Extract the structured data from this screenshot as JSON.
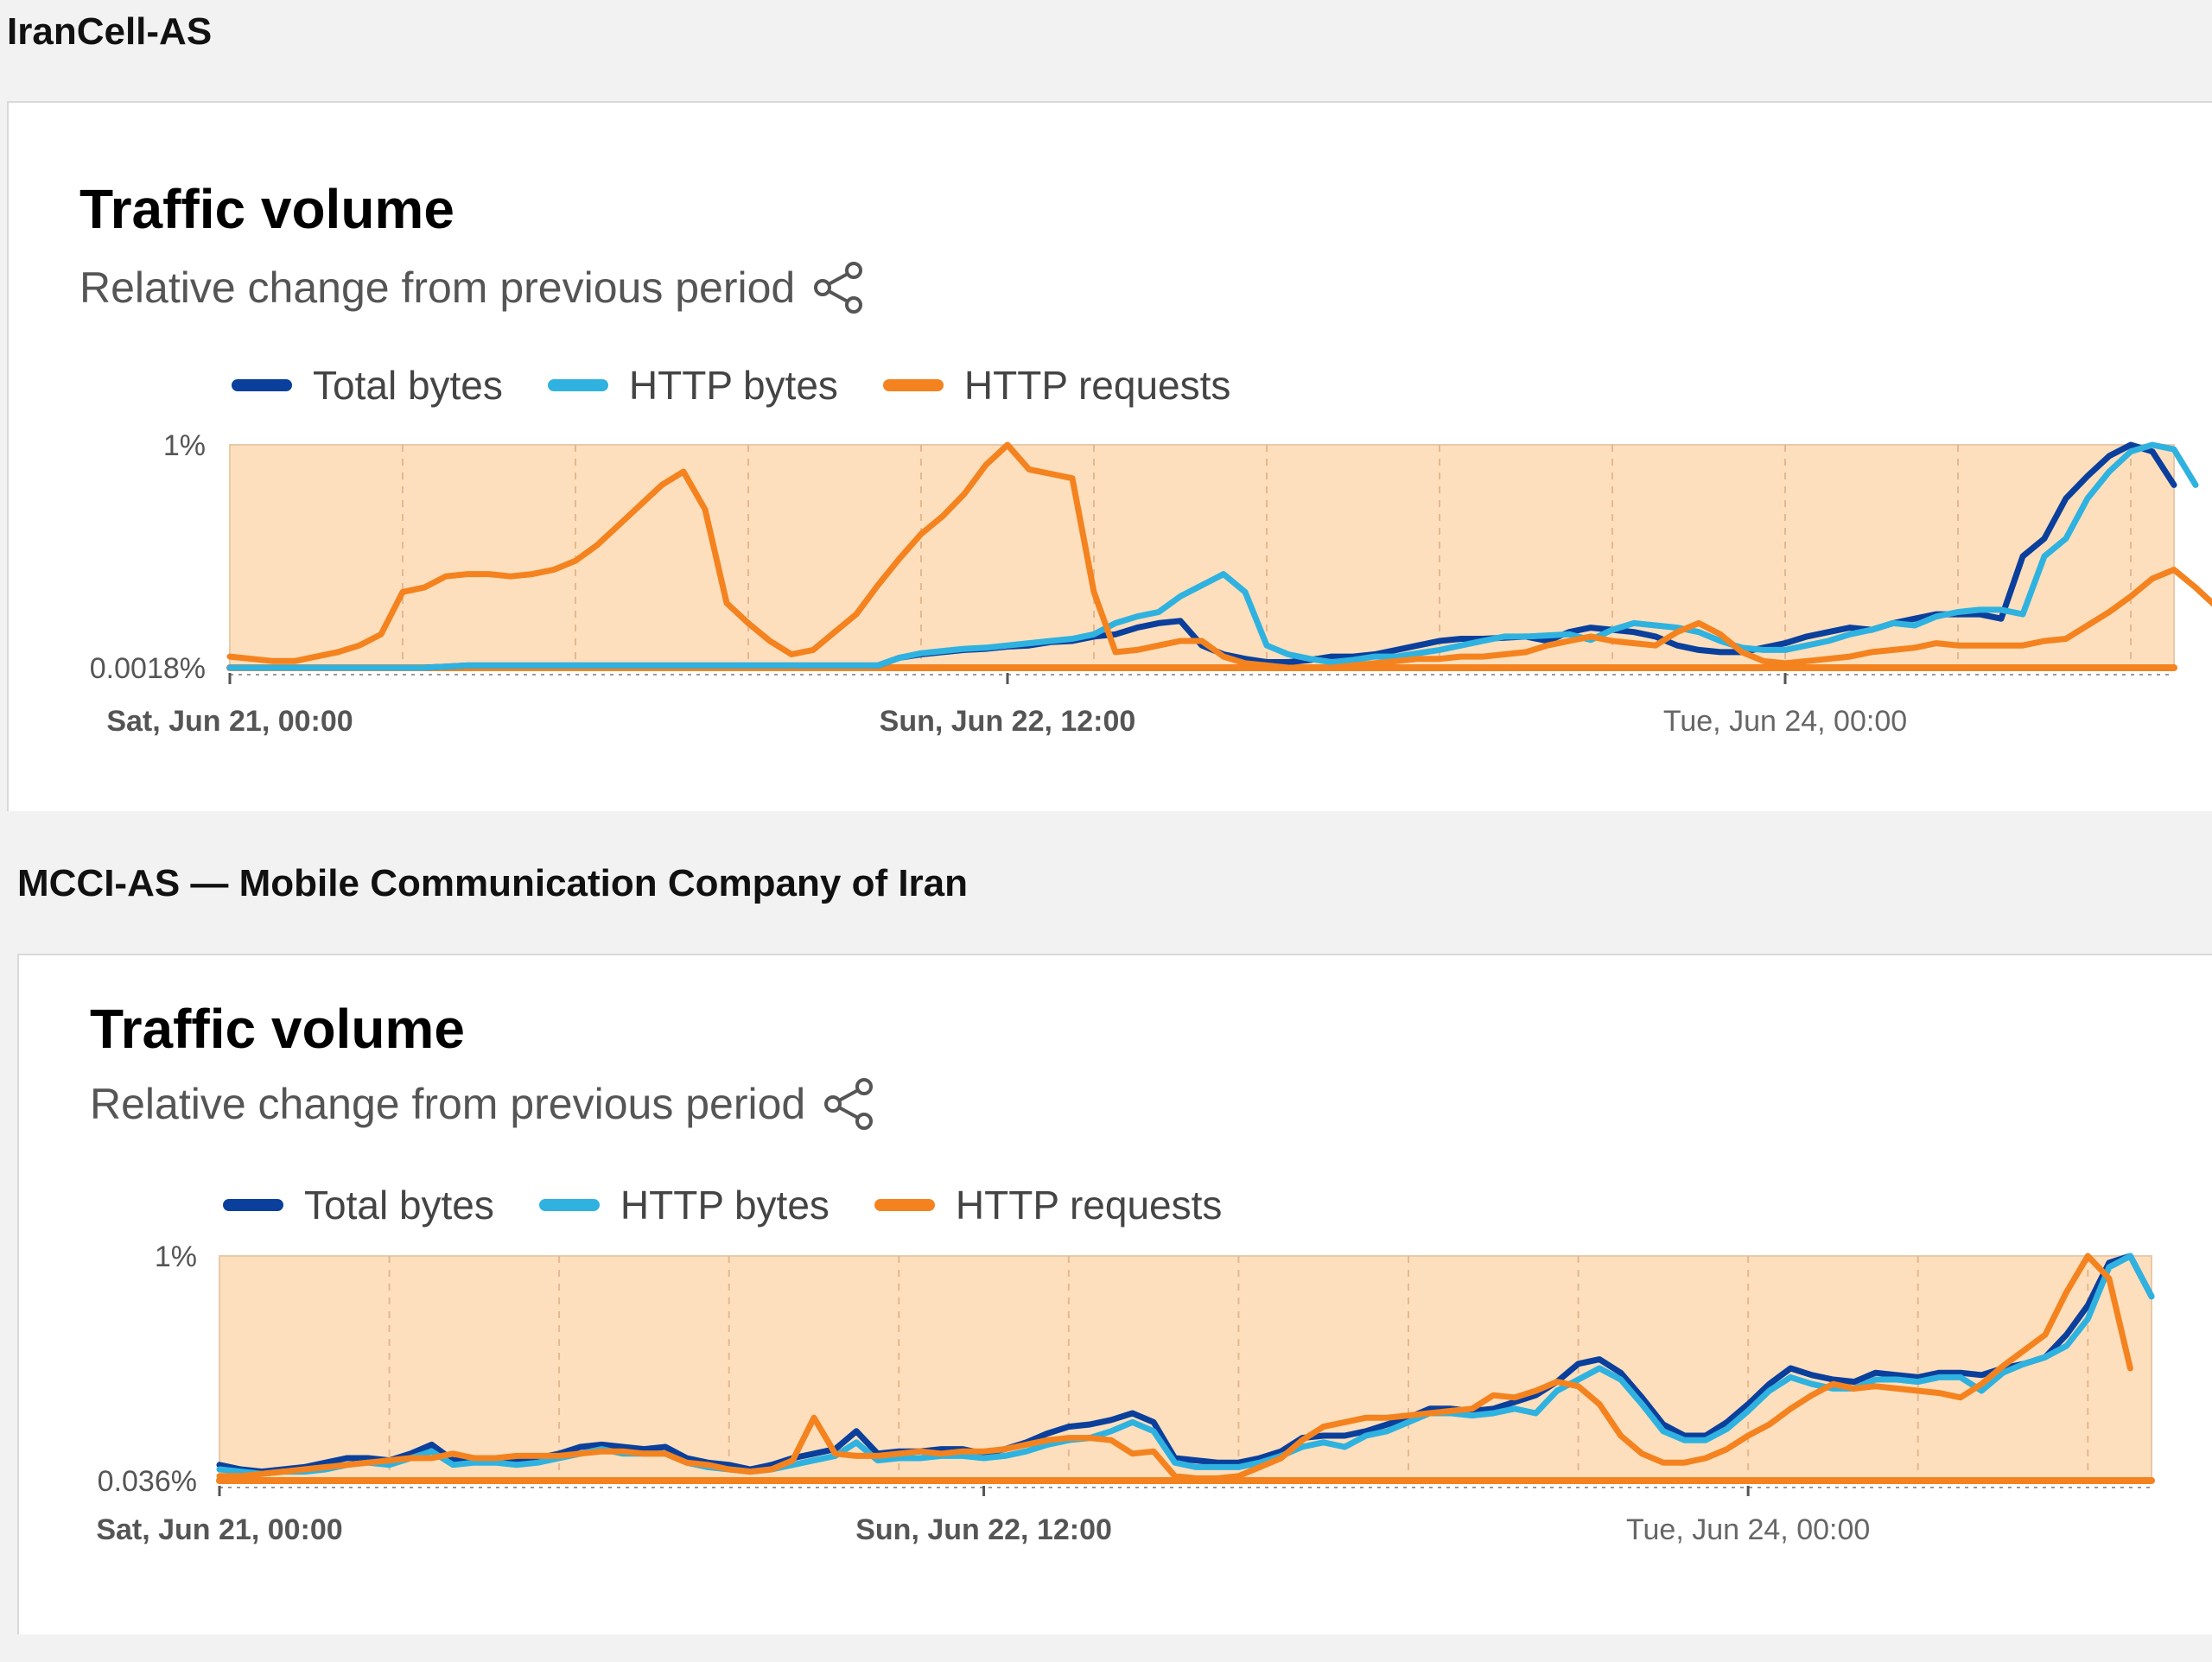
{
  "panels": [
    {
      "asn_title": "IranCell-AS",
      "title": "Traffic volume",
      "subtitle": "Relative change from previous period",
      "icons": {
        "share": "share-icon"
      },
      "legend": [
        {
          "name": "Total bytes",
          "color": "#0a3f9c"
        },
        {
          "name": "HTTP bytes",
          "color": "#2fb2e0"
        },
        {
          "name": "HTTP requests",
          "color": "#f4831f"
        }
      ],
      "chart_data": {
        "type": "line",
        "background_fill": "#fddfbd",
        "ytick_labels": [
          "1%",
          "0.0018%"
        ],
        "xtick_labels": [
          {
            "label": "Sat, Jun 21, 00:00",
            "bold": true,
            "t": 0
          },
          {
            "label": "Sun, Jun 22, 12:00",
            "bold": true,
            "t": 36
          },
          {
            "label": "Tue, Jun 24, 00:00",
            "bold": false,
            "t": 72
          }
        ],
        "x_start": "Jun 21 00:00",
        "x_step_hours": 1.5,
        "ylim": [
          0,
          1
        ],
        "series": [
          {
            "name": "Total bytes",
            "color": "#0a3f9c",
            "values": [
              0,
              0,
              0,
              0,
              0,
              0,
              0,
              0,
              0,
              0,
              0.005,
              0.01,
              0.01,
              0.01,
              0.01,
              0.01,
              0.01,
              0.01,
              0.01,
              0.01,
              0.01,
              0.01,
              0.01,
              0.01,
              0.01,
              0.01,
              0.01,
              0.01,
              0.01,
              0.01,
              0.01,
              0.045,
              0.06,
              0.07,
              0.08,
              0.085,
              0.095,
              0.1,
              0.115,
              0.12,
              0.14,
              0.15,
              0.18,
              0.2,
              0.21,
              0.1,
              0.06,
              0.04,
              0.025,
              0.025,
              0.035,
              0.05,
              0.05,
              0.06,
              0.08,
              0.1,
              0.12,
              0.13,
              0.13,
              0.135,
              0.14,
              0.12,
              0.16,
              0.18,
              0.17,
              0.16,
              0.14,
              0.1,
              0.08,
              0.07,
              0.07,
              0.09,
              0.11,
              0.14,
              0.16,
              0.18,
              0.17,
              0.2,
              0.22,
              0.24,
              0.24,
              0.24,
              0.22,
              0.5,
              0.58,
              0.76,
              0.86,
              0.95,
              1.0,
              0.97,
              0.82
            ]
          },
          {
            "name": "HTTP bytes",
            "color": "#2fb2e0",
            "values": [
              0,
              0,
              0,
              0,
              0,
              0,
              0,
              0,
              0,
              0,
              0.005,
              0.01,
              0.01,
              0.01,
              0.01,
              0.01,
              0.01,
              0.01,
              0.01,
              0.01,
              0.01,
              0.01,
              0.01,
              0.01,
              0.01,
              0.01,
              0.01,
              0.01,
              0.01,
              0.01,
              0.01,
              0.045,
              0.065,
              0.075,
              0.085,
              0.09,
              0.1,
              0.11,
              0.12,
              0.13,
              0.15,
              0.2,
              0.23,
              0.25,
              0.32,
              0.37,
              0.42,
              0.34,
              0.1,
              0.06,
              0.04,
              0.025,
              0.035,
              0.05,
              0.05,
              0.065,
              0.08,
              0.1,
              0.12,
              0.14,
              0.14,
              0.145,
              0.15,
              0.125,
              0.17,
              0.2,
              0.19,
              0.18,
              0.16,
              0.12,
              0.09,
              0.08,
              0.08,
              0.1,
              0.12,
              0.15,
              0.17,
              0.2,
              0.19,
              0.23,
              0.25,
              0.26,
              0.26,
              0.24,
              0.5,
              0.58,
              0.76,
              0.88,
              0.97,
              1.0,
              0.98,
              0.82
            ]
          },
          {
            "name": "HTTP requests",
            "color": "#f4831f",
            "values": [
              0.05,
              0.04,
              0.03,
              0.03,
              0.05,
              0.07,
              0.1,
              0.15,
              0.34,
              0.36,
              0.41,
              0.42,
              0.42,
              0.41,
              0.42,
              0.44,
              0.48,
              0.55,
              0.64,
              0.73,
              0.82,
              0.88,
              0.71,
              0.29,
              0.2,
              0.12,
              0.06,
              0.08,
              0.16,
              0.24,
              0.37,
              0.49,
              0.6,
              0.68,
              0.78,
              0.91,
              1.0,
              0.89,
              0.87,
              0.85,
              0.34,
              0.07,
              0.08,
              0.1,
              0.12,
              0.12,
              0.05,
              0.02,
              0.01,
              0,
              0,
              0,
              0.01,
              0.02,
              0.03,
              0.04,
              0.04,
              0.05,
              0.05,
              0.06,
              0.07,
              0.1,
              0.12,
              0.14,
              0.12,
              0.11,
              0.1,
              0.16,
              0.2,
              0.15,
              0.07,
              0.03,
              0.02,
              0.03,
              0.04,
              0.05,
              0.07,
              0.08,
              0.09,
              0.11,
              0.1,
              0.1,
              0.1,
              0.1,
              0.12,
              0.13,
              0.19,
              0.25,
              0.32,
              0.4,
              0.44,
              0.36,
              0.27
            ]
          }
        ]
      }
    },
    {
      "asn_title": "MCCI-AS — Mobile Communication Company of Iran",
      "title": "Traffic volume",
      "subtitle": "Relative change from previous period",
      "icons": {
        "share": "share-icon"
      },
      "legend": [
        {
          "name": "Total bytes",
          "color": "#0a3f9c"
        },
        {
          "name": "HTTP bytes",
          "color": "#2fb2e0"
        },
        {
          "name": "HTTP requests",
          "color": "#f4831f"
        }
      ],
      "chart_data": {
        "type": "line",
        "background_fill": "#fddfbd",
        "ytick_labels": [
          "1%",
          "0.036%"
        ],
        "xtick_labels": [
          {
            "label": "Sat, Jun 21, 00:00",
            "bold": true,
            "t": 0
          },
          {
            "label": "Sun, Jun 22, 12:00",
            "bold": true,
            "t": 36
          },
          {
            "label": "Tue, Jun 24, 00:00",
            "bold": false,
            "t": 72
          }
        ],
        "x_start": "Jun 21 00:00",
        "x_step_hours": 1.5,
        "ylim": [
          0,
          1
        ],
        "series": [
          {
            "name": "Total bytes",
            "color": "#0a3f9c",
            "values": [
              0.07,
              0.05,
              0.04,
              0.05,
              0.06,
              0.08,
              0.1,
              0.1,
              0.09,
              0.12,
              0.16,
              0.09,
              0.1,
              0.1,
              0.09,
              0.1,
              0.12,
              0.15,
              0.16,
              0.15,
              0.14,
              0.15,
              0.1,
              0.08,
              0.07,
              0.05,
              0.07,
              0.1,
              0.12,
              0.14,
              0.22,
              0.12,
              0.13,
              0.13,
              0.14,
              0.14,
              0.12,
              0.14,
              0.17,
              0.21,
              0.24,
              0.25,
              0.27,
              0.3,
              0.26,
              0.1,
              0.09,
              0.08,
              0.08,
              0.1,
              0.13,
              0.19,
              0.2,
              0.2,
              0.22,
              0.25,
              0.28,
              0.32,
              0.32,
              0.31,
              0.32,
              0.35,
              0.38,
              0.44,
              0.52,
              0.54,
              0.48,
              0.37,
              0.25,
              0.2,
              0.2,
              0.26,
              0.34,
              0.43,
              0.5,
              0.47,
              0.45,
              0.44,
              0.48,
              0.47,
              0.46,
              0.48,
              0.48,
              0.47,
              0.5,
              0.52,
              0.55,
              0.65,
              0.78,
              0.97,
              1.0,
              0.82
            ]
          },
          {
            "name": "HTTP bytes",
            "color": "#2fb2e0",
            "values": [
              0.05,
              0.04,
              0.03,
              0.04,
              0.04,
              0.05,
              0.07,
              0.08,
              0.07,
              0.1,
              0.13,
              0.07,
              0.08,
              0.08,
              0.07,
              0.08,
              0.1,
              0.12,
              0.14,
              0.12,
              0.12,
              0.12,
              0.08,
              0.06,
              0.05,
              0.04,
              0.05,
              0.07,
              0.09,
              0.11,
              0.17,
              0.09,
              0.1,
              0.1,
              0.11,
              0.11,
              0.1,
              0.11,
              0.13,
              0.16,
              0.18,
              0.19,
              0.22,
              0.26,
              0.22,
              0.08,
              0.06,
              0.06,
              0.06,
              0.08,
              0.11,
              0.15,
              0.17,
              0.15,
              0.2,
              0.22,
              0.26,
              0.3,
              0.3,
              0.29,
              0.3,
              0.32,
              0.3,
              0.4,
              0.45,
              0.5,
              0.45,
              0.34,
              0.22,
              0.18,
              0.18,
              0.23,
              0.31,
              0.4,
              0.46,
              0.43,
              0.41,
              0.41,
              0.45,
              0.45,
              0.44,
              0.46,
              0.46,
              0.4,
              0.48,
              0.52,
              0.55,
              0.6,
              0.72,
              0.95,
              1.0,
              0.82
            ]
          },
          {
            "name": "HTTP requests",
            "color": "#f4831f",
            "values": [
              0.02,
              0.02,
              0.03,
              0.04,
              0.05,
              0.06,
              0.07,
              0.08,
              0.09,
              0.1,
              0.1,
              0.12,
              0.1,
              0.1,
              0.11,
              0.11,
              0.11,
              0.12,
              0.13,
              0.13,
              0.12,
              0.12,
              0.08,
              0.07,
              0.05,
              0.04,
              0.05,
              0.09,
              0.28,
              0.12,
              0.11,
              0.11,
              0.12,
              0.13,
              0.12,
              0.13,
              0.13,
              0.14,
              0.16,
              0.18,
              0.19,
              0.19,
              0.18,
              0.12,
              0.13,
              0.02,
              0.01,
              0.01,
              0.02,
              0.06,
              0.1,
              0.18,
              0.24,
              0.26,
              0.28,
              0.28,
              0.29,
              0.3,
              0.31,
              0.32,
              0.38,
              0.37,
              0.4,
              0.44,
              0.42,
              0.34,
              0.2,
              0.12,
              0.08,
              0.08,
              0.1,
              0.14,
              0.2,
              0.25,
              0.32,
              0.38,
              0.43,
              0.41,
              0.42,
              0.41,
              0.4,
              0.39,
              0.37,
              0.43,
              0.51,
              0.58,
              0.65,
              0.84,
              1.0,
              0.9,
              0.5
            ]
          }
        ]
      }
    }
  ]
}
